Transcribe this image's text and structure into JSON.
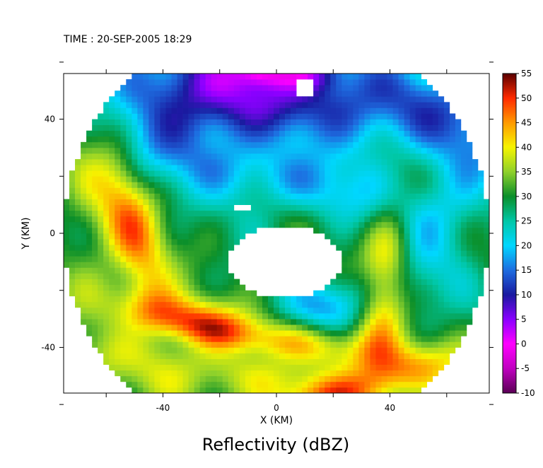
{
  "chart_data": {
    "type": "heatmap",
    "time_label": "TIME : 20-SEP-2005 18:29",
    "title": "Reflectivity (dBZ)",
    "xlabel": "X (KM)",
    "ylabel": "Y (KM)",
    "xlim": [
      -75,
      75
    ],
    "ylim": [
      -56,
      56
    ],
    "x_ticks": [
      {
        "value": -40,
        "label": "-40"
      },
      {
        "value": 0,
        "label": "0"
      },
      {
        "value": 40,
        "label": "40"
      }
    ],
    "y_ticks": [
      {
        "value": 40,
        "label": "40"
      },
      {
        "value": 0,
        "label": "0"
      },
      {
        "value": -40,
        "label": "-40"
      }
    ],
    "minor_x_ticks": [
      -60,
      -40,
      -20,
      0,
      20,
      40,
      60
    ],
    "minor_y_ticks": [
      60,
      40,
      20,
      0,
      -20,
      -40,
      -60
    ],
    "colorbar": {
      "min": -10,
      "max": 55,
      "ticks": [
        {
          "value": 55,
          "label": "55"
        },
        {
          "value": 50,
          "label": "50"
        },
        {
          "value": 45,
          "label": "45"
        },
        {
          "value": 40,
          "label": "40"
        },
        {
          "value": 35,
          "label": "35"
        },
        {
          "value": 30,
          "label": "30"
        },
        {
          "value": 25,
          "label": "25"
        },
        {
          "value": 20,
          "label": "20"
        },
        {
          "value": 15,
          "label": "15"
        },
        {
          "value": 10,
          "label": "10"
        },
        {
          "value": 5,
          "label": "5"
        },
        {
          "value": 0,
          "label": "0"
        },
        {
          "value": -5,
          "label": "-5"
        },
        {
          "value": -10,
          "label": "-10"
        }
      ],
      "stops": [
        {
          "value": -10,
          "color": "#5a0055"
        },
        {
          "value": -5,
          "color": "#c000c0"
        },
        {
          "value": 0,
          "color": "#ff00ff"
        },
        {
          "value": 5,
          "color": "#8a00ff"
        },
        {
          "value": 10,
          "color": "#1a1aa0"
        },
        {
          "value": 15,
          "color": "#1e6de0"
        },
        {
          "value": 20,
          "color": "#00d7ff"
        },
        {
          "value": 25,
          "color": "#00c7a6"
        },
        {
          "value": 30,
          "color": "#0b8f2a"
        },
        {
          "value": 35,
          "color": "#8fd12b"
        },
        {
          "value": 40,
          "color": "#f6f400"
        },
        {
          "value": 45,
          "color": "#ff9a00"
        },
        {
          "value": 50,
          "color": "#ff2a00"
        },
        {
          "value": 55,
          "color": "#5a0000"
        }
      ]
    },
    "field": {
      "domain_radius_km": 75,
      "eye_center_km": [
        3,
        -10
      ],
      "eye_radius_km": [
        20,
        13
      ],
      "background_dbz": 29,
      "features": [
        {
          "name": "northern-weak-band",
          "x": 15,
          "y": 48,
          "rx": 55,
          "ry": 12,
          "rot": -8,
          "amp": -18
        },
        {
          "name": "northwest-weak-band",
          "x": -30,
          "y": 42,
          "rx": 20,
          "ry": 14,
          "rot": 10,
          "amp": -12
        },
        {
          "name": "purple-north",
          "x": -5,
          "y": 58,
          "rx": 7,
          "ry": 4,
          "rot": 0,
          "amp": -13
        },
        {
          "name": "purple-north-east",
          "x": 12,
          "y": 56,
          "rx": 8,
          "ry": 4,
          "rot": 0,
          "amp": -10
        },
        {
          "name": "eyewall-inner-cyan-north",
          "x": 5,
          "y": 18,
          "rx": 32,
          "ry": 8,
          "rot": -10,
          "amp": -10
        },
        {
          "name": "eyewall-inner-blue-south",
          "x": 18,
          "y": -26,
          "rx": 18,
          "ry": 7,
          "rot": 20,
          "amp": -11
        },
        {
          "name": "west-spiral-red",
          "x": -50,
          "y": 0,
          "rx": 7,
          "ry": 21,
          "rot": 15,
          "amp": 15
        },
        {
          "name": "southwest-spiral-red",
          "x": -30,
          "y": -32,
          "rx": 18,
          "ry": 6,
          "rot": -18,
          "amp": 16
        },
        {
          "name": "south-spiral-red",
          "x": 10,
          "y": -38,
          "rx": 30,
          "ry": 6,
          "rot": -10,
          "amp": 14
        },
        {
          "name": "east-spiral-red",
          "x": 38,
          "y": -18,
          "rx": 6,
          "ry": 20,
          "rot": -5,
          "amp": 15
        },
        {
          "name": "southeast-spiral-red",
          "x": 28,
          "y": -55,
          "rx": 26,
          "ry": 6,
          "rot": 18,
          "amp": 14
        },
        {
          "name": "southwest-yellow-band",
          "x": -20,
          "y": -50,
          "rx": 35,
          "ry": 8,
          "rot": -8,
          "amp": 9
        },
        {
          "name": "west-green-band",
          "x": -65,
          "y": 10,
          "rx": 10,
          "ry": 35,
          "rot": 0,
          "amp": 5
        },
        {
          "name": "east-cyan-band",
          "x": 60,
          "y": 8,
          "rx": 10,
          "ry": 25,
          "rot": -20,
          "amp": -7
        },
        {
          "name": "south-cyan-band",
          "x": -10,
          "y": -42,
          "rx": 25,
          "ry": 4,
          "rot": -10,
          "amp": -5
        }
      ],
      "holes": [
        {
          "x": -12,
          "y": 9,
          "rx": 3,
          "ry": 2
        },
        {
          "x": 10,
          "y": 51,
          "rx": 4,
          "ry": 4
        }
      ]
    }
  }
}
